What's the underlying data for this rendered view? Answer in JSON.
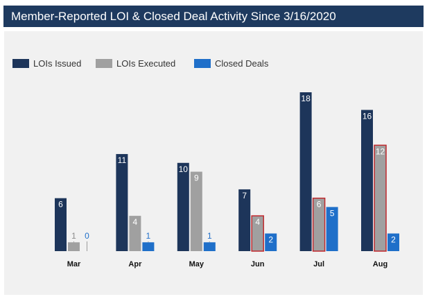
{
  "header": {
    "title": "Member-Reported LOI & Closed Deal Activity Since 3/16/2020"
  },
  "colors": {
    "header_bg": "#1e3a5f",
    "loi_issued": "#1d355a",
    "loi_executed": "#a0a0a0",
    "closed_deals": "#1f6fc9",
    "highlight_outline": "#c0282d",
    "panel_bg": "#f1f1f1"
  },
  "chart_data": {
    "type": "bar",
    "title": "Member-Reported LOI & Closed Deal Activity Since 3/16/2020",
    "categories": [
      "Mar",
      "Apr",
      "May",
      "Jun",
      "Jul",
      "Aug"
    ],
    "series": [
      {
        "name": "LOIs Issued",
        "values": [
          6,
          11,
          10,
          7,
          18,
          16
        ]
      },
      {
        "name": "LOIs Executed",
        "values": [
          1,
          4,
          9,
          4,
          6,
          12
        ]
      },
      {
        "name": "Closed Deals",
        "values": [
          0,
          1,
          1,
          2,
          5,
          2
        ]
      }
    ],
    "highlighted": {
      "series": "LOIs Executed",
      "categories": [
        "Jun",
        "Jul",
        "Aug"
      ]
    },
    "legend_position": "top-left",
    "ylim": [
      0,
      18
    ],
    "grid": false
  }
}
